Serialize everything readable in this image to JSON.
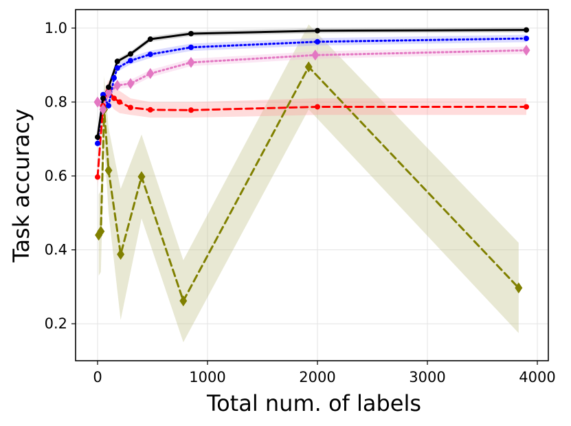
{
  "chart_data": {
    "type": "line",
    "title": "",
    "xlabel": "Total num. of labels",
    "ylabel": "Task accuracy",
    "xlim": [
      -200,
      4100
    ],
    "ylim": [
      0.1,
      1.05
    ],
    "xticks": [
      0,
      1000,
      2000,
      3000,
      4000
    ],
    "xtick_labels": [
      "0",
      "1000",
      "2000",
      "3000",
      "4000"
    ],
    "yticks": [
      0.2,
      0.4,
      0.6,
      0.8,
      1.0
    ],
    "ytick_labels": [
      "0.2",
      "0.4",
      "0.6",
      "0.8",
      "1.0"
    ],
    "grid": true,
    "series": [
      {
        "name": "olive-dashed",
        "color": "#808000",
        "fill_color": "#bdbd80",
        "dash": "10,6",
        "marker": "diamond",
        "x": [
          10,
          30,
          60,
          100,
          210,
          400,
          780,
          1920,
          3830
        ],
        "y": [
          0.44,
          0.45,
          0.78,
          0.615,
          0.388,
          0.598,
          0.262,
          0.895,
          0.297
        ],
        "band_lower": [
          0.33,
          0.34,
          0.69,
          0.5,
          0.21,
          0.485,
          0.15,
          0.78,
          0.175
        ],
        "band_upper": [
          0.55,
          0.56,
          0.87,
          0.73,
          0.565,
          0.712,
          0.372,
          1.01,
          0.419
        ]
      },
      {
        "name": "red-dashed",
        "color": "#ff0000",
        "fill_color": "#ff9a9a",
        "dash": "10,6",
        "marker": "circle",
        "x": [
          0,
          50,
          100,
          150,
          200,
          300,
          480,
          850,
          2000,
          3900
        ],
        "y": [
          0.597,
          0.79,
          0.83,
          0.81,
          0.8,
          0.785,
          0.779,
          0.778,
          0.787,
          0.787
        ],
        "band_lower": [
          0.567,
          0.76,
          0.8,
          0.78,
          0.77,
          0.765,
          0.758,
          0.758,
          0.765,
          0.765
        ],
        "band_upper": [
          0.627,
          0.82,
          0.86,
          0.84,
          0.83,
          0.81,
          0.8,
          0.8,
          0.81,
          0.81
        ]
      },
      {
        "name": "pink-dotted",
        "color": "#e377c2",
        "fill_color": "#f4b9e0",
        "dash": "2,4",
        "marker": "diamond",
        "x": [
          0,
          50,
          100,
          180,
          300,
          480,
          850,
          1980,
          3900
        ],
        "y": [
          0.8,
          0.78,
          0.825,
          0.845,
          0.85,
          0.877,
          0.907,
          0.927,
          0.94
        ],
        "band_lower": [
          0.79,
          0.77,
          0.815,
          0.835,
          0.84,
          0.867,
          0.897,
          0.917,
          0.93
        ],
        "band_upper": [
          0.81,
          0.79,
          0.835,
          0.855,
          0.86,
          0.887,
          0.917,
          0.937,
          0.95
        ]
      },
      {
        "name": "blue-dotted",
        "color": "#0000ff",
        "fill_color": "#9a9aff",
        "dash": "2,4",
        "marker": "circle",
        "x": [
          0,
          50,
          100,
          150,
          180,
          300,
          480,
          850,
          2000,
          3900
        ],
        "y": [
          0.688,
          0.82,
          0.79,
          0.865,
          0.892,
          0.912,
          0.929,
          0.948,
          0.963,
          0.972
        ],
        "band_lower": [
          0.678,
          0.81,
          0.78,
          0.855,
          0.882,
          0.902,
          0.919,
          0.938,
          0.953,
          0.962
        ],
        "band_upper": [
          0.698,
          0.83,
          0.8,
          0.875,
          0.902,
          0.922,
          0.939,
          0.958,
          0.973,
          0.982
        ]
      },
      {
        "name": "black-solid",
        "color": "#000000",
        "fill_color": "#9a9a9a",
        "dash": "",
        "marker": "circle",
        "x": [
          0,
          50,
          100,
          180,
          300,
          480,
          850,
          2000,
          3900
        ],
        "y": [
          0.705,
          0.81,
          0.84,
          0.91,
          0.93,
          0.97,
          0.985,
          0.993,
          0.995
        ],
        "band_lower": [
          0.698,
          0.803,
          0.833,
          0.903,
          0.923,
          0.963,
          0.978,
          0.986,
          0.988
        ],
        "band_upper": [
          0.712,
          0.817,
          0.847,
          0.917,
          0.937,
          0.977,
          0.992,
          1.0,
          1.002
        ]
      }
    ]
  }
}
